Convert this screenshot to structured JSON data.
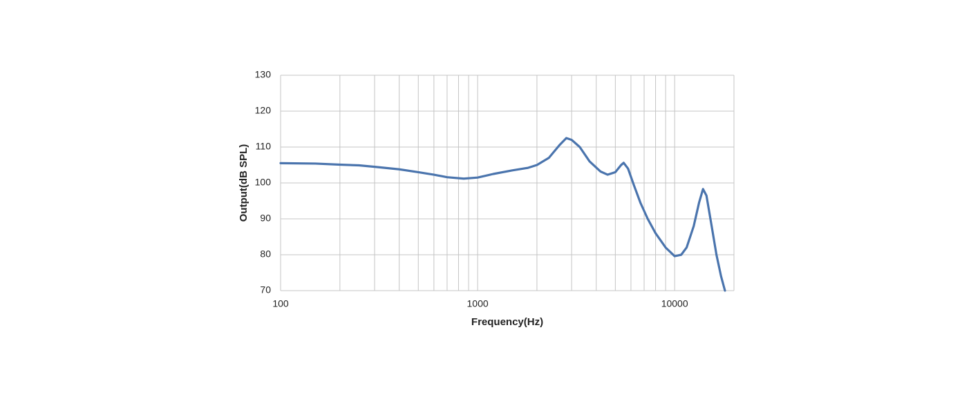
{
  "chart_data": {
    "type": "line",
    "x_label": "Frequency(Hz)",
    "y_label": "Output(dB SPL)",
    "x_log": true,
    "grid": true,
    "xlim": [
      100,
      20000
    ],
    "ylim": [
      70,
      130
    ],
    "xticks": [
      100,
      1000,
      10000
    ],
    "x_minor_gridlines": [
      200,
      300,
      400,
      500,
      600,
      700,
      800,
      900,
      2000,
      3000,
      4000,
      5000,
      6000,
      7000,
      8000,
      9000,
      20000
    ],
    "yticks": [
      70,
      80,
      90,
      100,
      110,
      120,
      130
    ],
    "x": [
      100,
      150,
      200,
      250,
      300,
      400,
      500,
      600,
      700,
      850,
      1000,
      1200,
      1500,
      1800,
      2000,
      2300,
      2600,
      2820,
      3000,
      3300,
      3700,
      4200,
      4570,
      5000,
      5350,
      5510,
      5800,
      6200,
      6700,
      7300,
      8000,
      9000,
      10000,
      10800,
      11500,
      12500,
      13300,
      13930,
      14500,
      15300,
      16300,
      17200,
      18000
    ],
    "series": [
      {
        "name": "Output",
        "color": "#4a74ad",
        "values": [
          105.5,
          105.4,
          105.1,
          104.9,
          104.5,
          103.8,
          103.0,
          102.3,
          101.6,
          101.2,
          101.5,
          102.5,
          103.5,
          104.2,
          105.0,
          107.0,
          110.5,
          112.5,
          112.0,
          110.0,
          106.0,
          103.2,
          102.3,
          103.0,
          105.0,
          105.6,
          104.0,
          99.5,
          94.5,
          90.0,
          86.0,
          82.0,
          79.6,
          80.0,
          82.0,
          88.0,
          94.5,
          98.3,
          96.5,
          89.0,
          80.0,
          74.0,
          70.0
        ]
      }
    ]
  }
}
